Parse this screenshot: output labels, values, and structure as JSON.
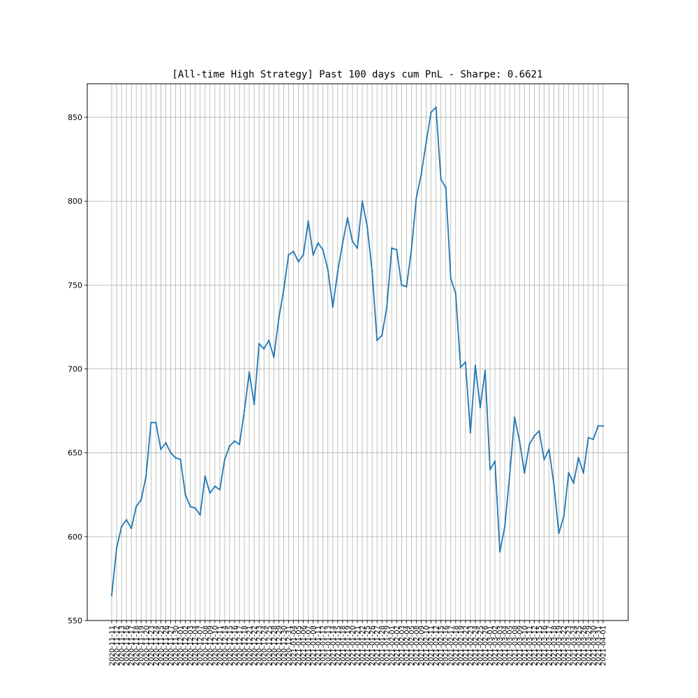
{
  "chart_data": {
    "type": "line",
    "title": "[All-time High Strategy] Past 100 days cum PnL - Sharpe: 0.6621",
    "xlabel": "",
    "ylabel": "",
    "ylim": [
      550,
      870
    ],
    "yticks": [
      550,
      600,
      650,
      700,
      750,
      800,
      850
    ],
    "grid": true,
    "series_color": "#1f77b4",
    "grid_color": "#b0b0b0",
    "x": [
      "2020-11-11",
      "2020-11-12",
      "2020-11-13",
      "2020-11-16",
      "2020-11-17",
      "2020-11-18",
      "2020-11-19",
      "2020-11-20",
      "2020-11-23",
      "2020-11-24",
      "2020-11-25",
      "2020-11-26",
      "2020-11-27",
      "2020-11-30",
      "2020-12-01",
      "2020-12-02",
      "2020-12-03",
      "2020-12-04",
      "2020-12-07",
      "2020-12-08",
      "2020-12-09",
      "2020-12-10",
      "2020-12-11",
      "2020-12-14",
      "2020-12-15",
      "2020-12-16",
      "2020-12-17",
      "2020-12-18",
      "2020-12-21",
      "2020-12-22",
      "2020-12-23",
      "2020-12-24",
      "2020-12-25",
      "2020-12-28",
      "2020-12-29",
      "2020-12-30",
      "2020-12-31",
      "2021-01-04",
      "2021-01-05",
      "2021-01-06",
      "2021-01-07",
      "2021-01-08",
      "2021-01-11",
      "2021-01-12",
      "2021-01-13",
      "2021-01-14",
      "2021-01-15",
      "2021-01-18",
      "2021-01-19",
      "2021-01-20",
      "2021-01-21",
      "2021-01-22",
      "2021-01-25",
      "2021-01-26",
      "2021-01-27",
      "2021-01-28",
      "2021-01-29",
      "2021-02-01",
      "2021-02-02",
      "2021-02-03",
      "2021-02-04",
      "2021-02-05",
      "2021-02-08",
      "2021-02-09",
      "2021-02-10",
      "2021-02-11",
      "2021-02-12",
      "2021-02-15",
      "2021-02-16",
      "2021-02-17",
      "2021-02-18",
      "2021-02-19",
      "2021-02-22",
      "2021-02-23",
      "2021-02-24",
      "2021-02-25",
      "2021-02-26",
      "2021-03-01",
      "2021-03-02",
      "2021-03-03",
      "2021-03-04",
      "2021-03-05",
      "2021-03-08",
      "2021-03-09",
      "2021-03-10",
      "2021-03-11",
      "2021-03-12",
      "2021-03-15",
      "2021-03-16",
      "2021-03-17",
      "2021-03-18",
      "2021-03-19",
      "2021-03-22",
      "2021-03-23",
      "2021-03-24",
      "2021-03-25",
      "2021-03-26",
      "2021-03-29",
      "2021-03-30",
      "2021-03-31",
      "2021-04-01"
    ],
    "series": [
      {
        "name": "cum PnL",
        "values": [
          565,
          593,
          606,
          610,
          605,
          618,
          622,
          636,
          668,
          668,
          652,
          656,
          650,
          647,
          646,
          625,
          618,
          617,
          613,
          636,
          626,
          630,
          628,
          646,
          654,
          657,
          655,
          675,
          698,
          679,
          715,
          712,
          717,
          707,
          730,
          747,
          768,
          770,
          764,
          768,
          788,
          768,
          775,
          771,
          759,
          737,
          758,
          775,
          790,
          776,
          772,
          800,
          785,
          758,
          717,
          720,
          737,
          772,
          771,
          750,
          749,
          771,
          802,
          816,
          835,
          853,
          856,
          813,
          808,
          754,
          745,
          701,
          704,
          662,
          702,
          677,
          699,
          640,
          645,
          591,
          606,
          637,
          671,
          657,
          638,
          655,
          660,
          663,
          646,
          652,
          631,
          602,
          612,
          638,
          632,
          647,
          638,
          659,
          658,
          666,
          666
        ]
      }
    ]
  }
}
